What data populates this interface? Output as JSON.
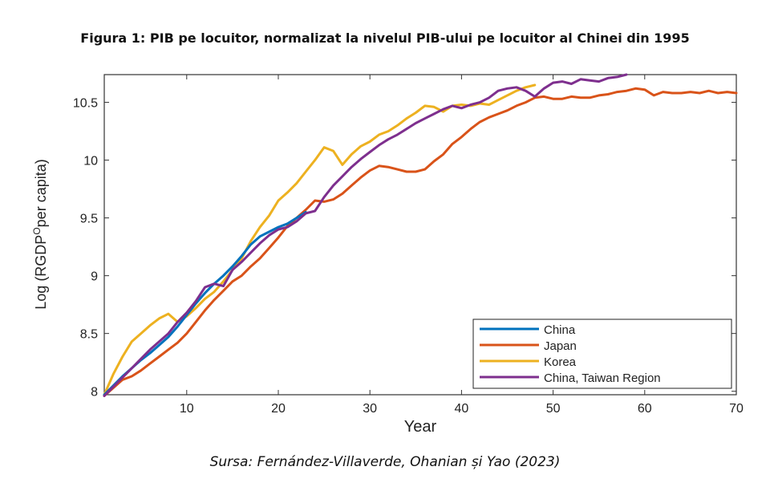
{
  "figure_title": "Figura 1: PIB pe locuitor, normalizat la nivelul PIB-ului pe locuitor al Chinei din 1995",
  "source": "Sursa: Fernández-Villaverde, Ohanian și Yao (2023)",
  "chart_data": {
    "type": "line",
    "title": "Figura 1: PIB pe locuitor, normalizat la nivelul PIB-ului pe locuitor al Chinei din 1995",
    "xlabel": "Year",
    "ylabel_main": "Log (RGDP",
    "ylabel_sup": "O",
    "ylabel_tail": "per capita)",
    "xlim": [
      1,
      70
    ],
    "ylim": [
      7.97,
      10.74
    ],
    "xticks": [
      10,
      20,
      30,
      40,
      50,
      60,
      70
    ],
    "xtick_labels": [
      "10",
      "20",
      "30",
      "40",
      "50",
      "60",
      "70"
    ],
    "yticks": [
      8,
      8.5,
      9,
      9.5,
      10,
      10.5
    ],
    "ytick_labels": [
      "8",
      "8.5",
      "9",
      "9.5",
      "10",
      "10.5"
    ],
    "grid": false,
    "legend_position": "bottom-right",
    "series": [
      {
        "name": "Japan",
        "color": "#d95319",
        "x": [
          1,
          2,
          3,
          4,
          5,
          6,
          7,
          8,
          9,
          10,
          11,
          12,
          13,
          14,
          15,
          16,
          17,
          18,
          19,
          20,
          21,
          22,
          23,
          24,
          25,
          26,
          27,
          28,
          29,
          30,
          31,
          32,
          33,
          34,
          35,
          36,
          37,
          38,
          39,
          40,
          41,
          42,
          43,
          44,
          45,
          46,
          47,
          48,
          49,
          50,
          51,
          52,
          53,
          54,
          55,
          56,
          57,
          58,
          59,
          60,
          61,
          62,
          63,
          64,
          65,
          66,
          67,
          68,
          69,
          70
        ],
        "values": [
          7.96,
          8.03,
          8.1,
          8.13,
          8.18,
          8.24,
          8.3,
          8.36,
          8.42,
          8.5,
          8.6,
          8.7,
          8.79,
          8.87,
          8.95,
          9.0,
          9.08,
          9.15,
          9.24,
          9.33,
          9.43,
          9.5,
          9.57,
          9.65,
          9.64,
          9.66,
          9.71,
          9.78,
          9.85,
          9.91,
          9.95,
          9.94,
          9.92,
          9.9,
          9.9,
          9.92,
          9.99,
          10.05,
          10.14,
          10.2,
          10.27,
          10.33,
          10.37,
          10.4,
          10.43,
          10.47,
          10.5,
          10.54,
          10.55,
          10.53,
          10.53,
          10.55,
          10.54,
          10.54,
          10.56,
          10.57,
          10.59,
          10.6,
          10.62,
          10.61,
          10.56,
          10.59,
          10.58,
          10.58,
          10.59,
          10.58,
          10.6,
          10.58,
          10.59,
          10.58
        ]
      },
      {
        "name": "Korea",
        "color": "#edb120",
        "x": [
          1,
          2,
          3,
          4,
          5,
          6,
          7,
          8,
          9,
          10,
          11,
          12,
          13,
          14,
          15,
          16,
          17,
          18,
          19,
          20,
          21,
          22,
          23,
          24,
          25,
          26,
          27,
          28,
          29,
          30,
          31,
          32,
          33,
          34,
          35,
          36,
          37,
          38,
          39,
          40,
          41,
          42,
          43,
          44,
          45,
          46,
          47,
          48
        ],
        "values": [
          7.97,
          8.15,
          8.3,
          8.43,
          8.5,
          8.57,
          8.63,
          8.67,
          8.6,
          8.65,
          8.72,
          8.8,
          8.86,
          8.95,
          9.05,
          9.15,
          9.3,
          9.42,
          9.52,
          9.65,
          9.72,
          9.8,
          9.9,
          10.0,
          10.11,
          10.08,
          9.96,
          10.05,
          10.12,
          10.16,
          10.22,
          10.25,
          10.3,
          10.36,
          10.41,
          10.47,
          10.46,
          10.42,
          10.47,
          10.48,
          10.47,
          10.49,
          10.48,
          10.52,
          10.56,
          10.6,
          10.63,
          10.65
        ]
      },
      {
        "name": "China",
        "color": "#0072bd",
        "x": [
          1,
          2,
          3,
          4,
          5,
          6,
          7,
          8,
          9,
          10,
          11,
          12,
          13,
          14,
          15,
          16,
          17,
          18,
          19,
          20,
          21,
          22,
          23
        ],
        "values": [
          7.97,
          8.05,
          8.13,
          8.2,
          8.27,
          8.33,
          8.4,
          8.47,
          8.56,
          8.66,
          8.76,
          8.85,
          8.93,
          9.0,
          9.08,
          9.17,
          9.27,
          9.34,
          9.38,
          9.42,
          9.45,
          9.5,
          9.55
        ]
      },
      {
        "name": "China, Taiwan Region",
        "color": "#7e2f8e",
        "x": [
          1,
          2,
          3,
          4,
          5,
          6,
          7,
          8,
          9,
          10,
          11,
          12,
          13,
          14,
          15,
          16,
          17,
          18,
          19,
          20,
          21,
          22,
          23,
          24,
          25,
          26,
          27,
          28,
          29,
          30,
          31,
          32,
          33,
          34,
          35,
          36,
          37,
          38,
          39,
          40,
          41,
          42,
          43,
          44,
          45,
          46,
          47,
          48,
          49,
          50,
          51,
          52,
          53,
          54,
          55,
          56,
          57,
          58
        ],
        "values": [
          7.96,
          8.04,
          8.12,
          8.2,
          8.28,
          8.36,
          8.43,
          8.5,
          8.6,
          8.68,
          8.78,
          8.9,
          8.93,
          8.91,
          9.05,
          9.12,
          9.2,
          9.28,
          9.35,
          9.4,
          9.42,
          9.47,
          9.54,
          9.56,
          9.68,
          9.78,
          9.86,
          9.94,
          10.01,
          10.07,
          10.13,
          10.18,
          10.22,
          10.27,
          10.32,
          10.36,
          10.4,
          10.44,
          10.47,
          10.45,
          10.48,
          10.5,
          10.54,
          10.6,
          10.62,
          10.63,
          10.6,
          10.55,
          10.62,
          10.67,
          10.68,
          10.66,
          10.7,
          10.69,
          10.68,
          10.71,
          10.72,
          10.74
        ]
      }
    ],
    "legend": [
      "China",
      "Japan",
      "Korea",
      "China, Taiwan Region"
    ],
    "legend_colors": [
      "#0072bd",
      "#d95319",
      "#edb120",
      "#7e2f8e"
    ]
  }
}
